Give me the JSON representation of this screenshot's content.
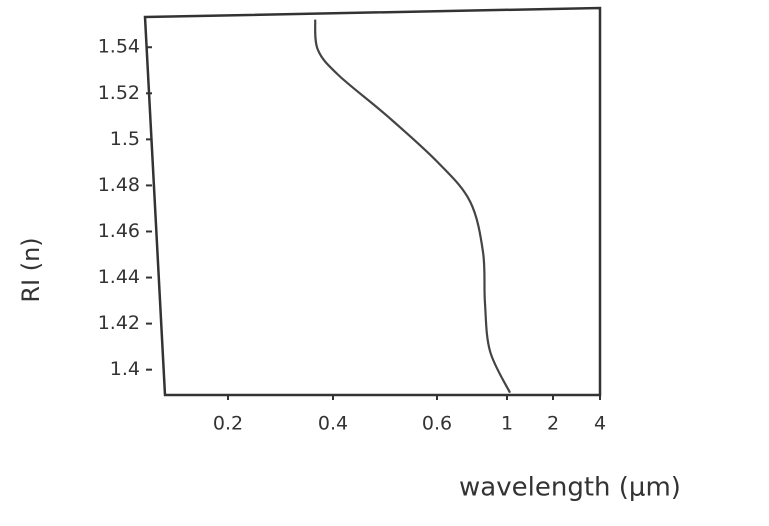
{
  "chart_data": {
    "type": "line",
    "x_label": "wavelength (μm)",
    "y_label": "RI (n)",
    "x": [
      0.366,
      0.371,
      0.41,
      0.505,
      0.605,
      0.789,
      0.863,
      0.874,
      0.903,
      1.065
    ],
    "values": [
      1.552,
      1.539,
      1.528,
      1.51,
      1.49,
      1.473,
      1.451,
      1.429,
      1.408,
      1.39
    ],
    "color": "#444444",
    "xlim": [
      0.1,
      4
    ],
    "xticks": [
      0.2,
      0.4,
      0.6,
      1,
      2,
      4
    ],
    "ylim": [
      1.389,
      1.554
    ],
    "yticks": [
      1.54,
      1.52,
      1.5,
      1.48,
      1.46,
      1.44,
      1.42,
      1.4
    ]
  }
}
